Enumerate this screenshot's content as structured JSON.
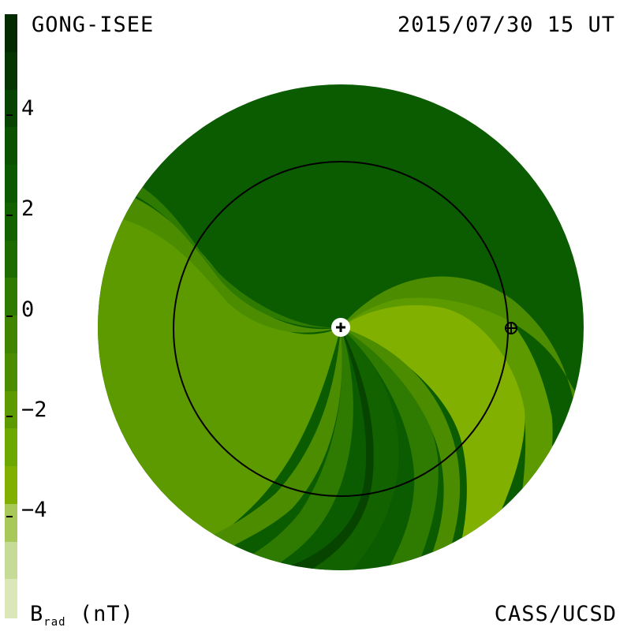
{
  "header": {
    "source": "GONG-ISEE",
    "timestamp": "2015/07/30 15 UT"
  },
  "footer": {
    "unit_prefix": "B",
    "unit_subscript": "rad",
    "unit_suffix": " (nT)",
    "credit": "CASS/UCSD"
  },
  "colorbar": {
    "ticks": [
      "4",
      "2",
      "0",
      "−2",
      "−4"
    ],
    "tick_values": [
      4,
      2,
      0,
      -2,
      -4
    ],
    "range": [
      -6,
      6
    ],
    "colors": [
      "#dbe6b9",
      "#c6db95",
      "#a9c85a",
      "#82b000",
      "#6da800",
      "#5c9a00",
      "#4c8c00",
      "#3f8500",
      "#2f7a00",
      "#1e6c00",
      "#126300",
      "#0b5a00",
      "#0a5200",
      "#074400",
      "#053500",
      "#032a00"
    ]
  },
  "map": {
    "colors": {
      "background_dark": "#0b5c00",
      "mid_dark": "#126300",
      "band_dark": "#1e6c00",
      "band_mid": "#2f7a00",
      "field_green": "#5c9a00",
      "band_light": "#4c8c00",
      "yellow_green": "#82b000",
      "deep": "#074400",
      "orbit": "#000000"
    },
    "sun_marker": "sun-plus-icon",
    "earth_marker": "earth-circle-plus-icon"
  }
}
